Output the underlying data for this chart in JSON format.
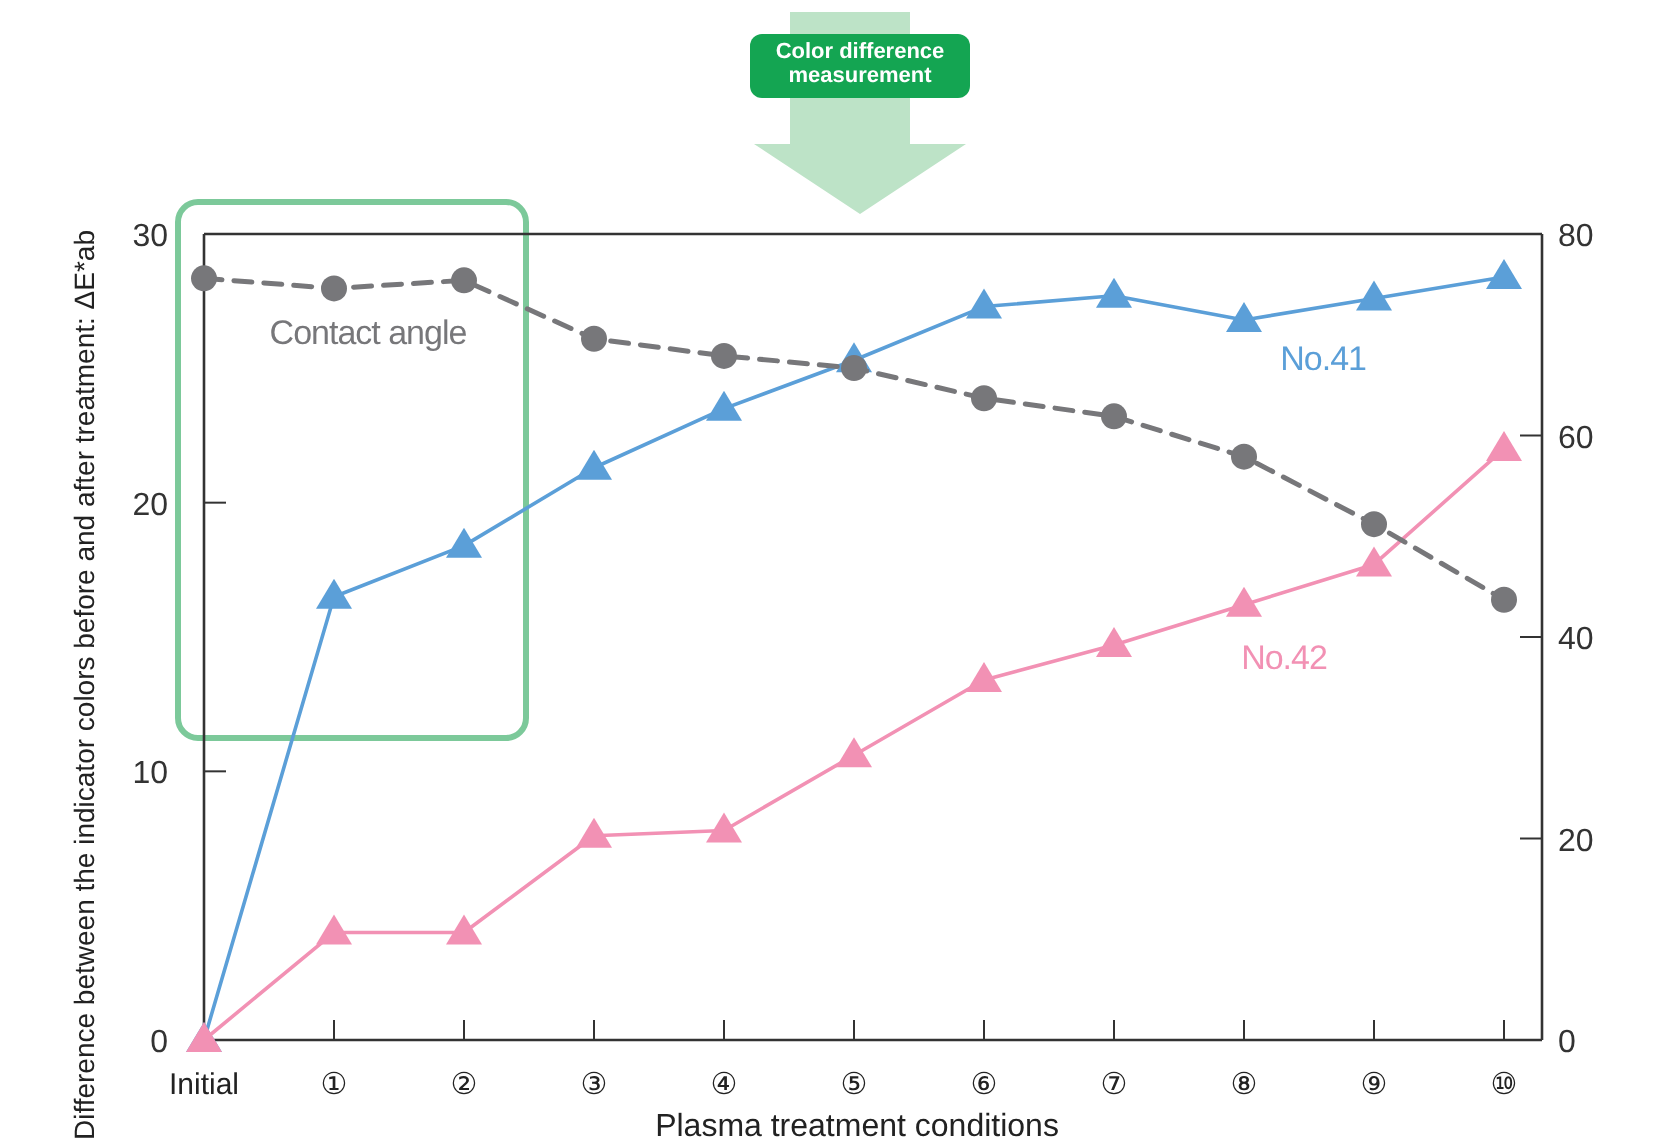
{
  "chart_data": {
    "type": "line",
    "ylabel": "Difference between the indicator colors before and after treatment: ΔE*ab",
    "xlabel": "Plasma treatment conditions",
    "categories": [
      "Initial",
      "①",
      "②",
      "③",
      "④",
      "⑤",
      "⑥",
      "⑦",
      "⑧",
      "⑨",
      "⑩"
    ],
    "ylim": [
      0,
      30
    ],
    "yticks": [
      0,
      10,
      20,
      30
    ],
    "y2lim": [
      0,
      80
    ],
    "y2ticks": [
      0,
      20,
      40,
      60,
      80
    ],
    "grid": false,
    "series": [
      {
        "name": "No.41",
        "color": "#5b9fd8",
        "marker": "triangle",
        "line_style": "solid",
        "values": [
          0,
          16.5,
          18.4,
          21.3,
          23.5,
          25.3,
          27.3,
          27.7,
          26.8,
          27.6,
          28.4
        ]
      },
      {
        "name": "No.42",
        "color": "#f291b4",
        "marker": "triangle",
        "line_style": "solid",
        "values": [
          0,
          4.0,
          4.0,
          7.6,
          7.8,
          10.6,
          13.4,
          14.7,
          16.2,
          17.7,
          22.0
        ]
      },
      {
        "name": "Contact angle",
        "color": "#77777a",
        "marker": "circle",
        "line_style": "dashed",
        "axis": "y2",
        "values": [
          75.6,
          74.6,
          75.4,
          69.6,
          67.9,
          66.7,
          63.7,
          61.9,
          57.9,
          51.2,
          43.7
        ]
      }
    ],
    "annotations": [
      "Color difference measurement"
    ]
  }
}
